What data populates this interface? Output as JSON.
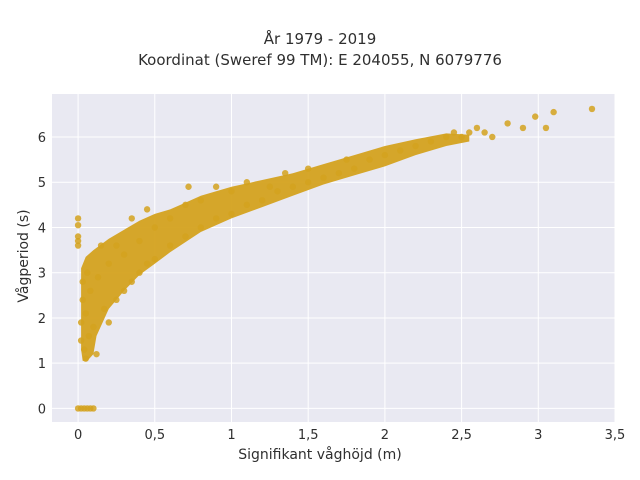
{
  "chart_data": {
    "type": "scatter",
    "title": "År 1979 - 2019",
    "subtitle": "Koordinat (Sweref 99 TM): E 204055, N 6079776",
    "xlabel": "Signifikant våghöjd (m)",
    "ylabel": "Vågperiod (s)",
    "xlim": [
      -0.17,
      3.5
    ],
    "ylim": [
      -0.3,
      6.95
    ],
    "xticks": [
      0,
      0.5,
      1,
      1.5,
      2,
      2.5,
      3,
      3.5
    ],
    "xtick_labels": [
      "0",
      "0,5",
      "1",
      "1,5",
      "2",
      "2,5",
      "3",
      "3,5"
    ],
    "yticks": [
      0,
      1,
      2,
      3,
      4,
      5,
      6
    ],
    "ytick_labels": [
      "0",
      "1",
      "2",
      "3",
      "4",
      "5",
      "6"
    ],
    "grid": true,
    "background": "#e9e9f2",
    "point_color": "#d4a21f",
    "series": [
      {
        "points": [
          [
            0,
            0
          ],
          [
            0.02,
            0
          ],
          [
            0.04,
            0
          ],
          [
            0.06,
            0
          ],
          [
            0.08,
            0
          ],
          [
            0.1,
            0
          ],
          [
            0,
            4.2
          ],
          [
            0,
            4.05
          ],
          [
            0,
            3.8
          ],
          [
            0,
            3.7
          ],
          [
            0,
            3.6
          ],
          [
            0.02,
            1.5
          ],
          [
            0.02,
            1.9
          ],
          [
            0.03,
            2.4
          ],
          [
            0.03,
            2.8
          ],
          [
            0.04,
            1.3
          ],
          [
            0.05,
            1.1
          ],
          [
            0.05,
            2.1
          ],
          [
            0.06,
            3.0
          ],
          [
            0.07,
            1.6
          ],
          [
            0.08,
            2.6
          ],
          [
            0.1,
            1.8
          ],
          [
            0.12,
            1.2
          ],
          [
            0.13,
            2.9
          ],
          [
            0.15,
            3.6
          ],
          [
            0.17,
            2.2
          ],
          [
            0.2,
            1.9
          ],
          [
            0.2,
            3.2
          ],
          [
            0.25,
            2.4
          ],
          [
            0.25,
            3.6
          ],
          [
            0.3,
            2.6
          ],
          [
            0.3,
            3.4
          ],
          [
            0.35,
            2.8
          ],
          [
            0.35,
            4.2
          ],
          [
            0.4,
            3.0
          ],
          [
            0.4,
            3.7
          ],
          [
            0.45,
            3.2
          ],
          [
            0.45,
            4.4
          ],
          [
            0.5,
            3.3
          ],
          [
            0.5,
            4.0
          ],
          [
            0.6,
            3.6
          ],
          [
            0.6,
            4.2
          ],
          [
            0.7,
            3.8
          ],
          [
            0.7,
            4.5
          ],
          [
            0.72,
            4.9
          ],
          [
            0.8,
            4.0
          ],
          [
            0.8,
            4.6
          ],
          [
            0.9,
            4.2
          ],
          [
            0.9,
            4.9
          ],
          [
            1.0,
            4.3
          ],
          [
            1.0,
            4.8
          ],
          [
            1.1,
            4.5
          ],
          [
            1.1,
            5.0
          ],
          [
            1.2,
            4.6
          ],
          [
            1.25,
            4.9
          ],
          [
            1.3,
            4.8
          ],
          [
            1.35,
            5.2
          ],
          [
            1.4,
            4.9
          ],
          [
            1.5,
            5.0
          ],
          [
            1.5,
            5.3
          ],
          [
            1.6,
            5.1
          ],
          [
            1.7,
            5.2
          ],
          [
            1.75,
            5.5
          ],
          [
            1.8,
            5.3
          ],
          [
            1.9,
            5.5
          ],
          [
            2.0,
            5.6
          ],
          [
            2.1,
            5.7
          ],
          [
            2.2,
            5.8
          ],
          [
            2.3,
            5.9
          ],
          [
            2.4,
            6.0
          ],
          [
            2.45,
            6.1
          ],
          [
            2.5,
            6.0
          ],
          [
            2.55,
            6.1
          ],
          [
            2.6,
            6.2
          ],
          [
            2.65,
            6.1
          ],
          [
            2.7,
            6.0
          ],
          [
            2.8,
            6.3
          ],
          [
            2.9,
            6.2
          ],
          [
            2.98,
            6.45
          ],
          [
            3.05,
            6.2
          ],
          [
            3.1,
            6.55
          ],
          [
            3.35,
            6.62
          ]
        ]
      }
    ]
  }
}
